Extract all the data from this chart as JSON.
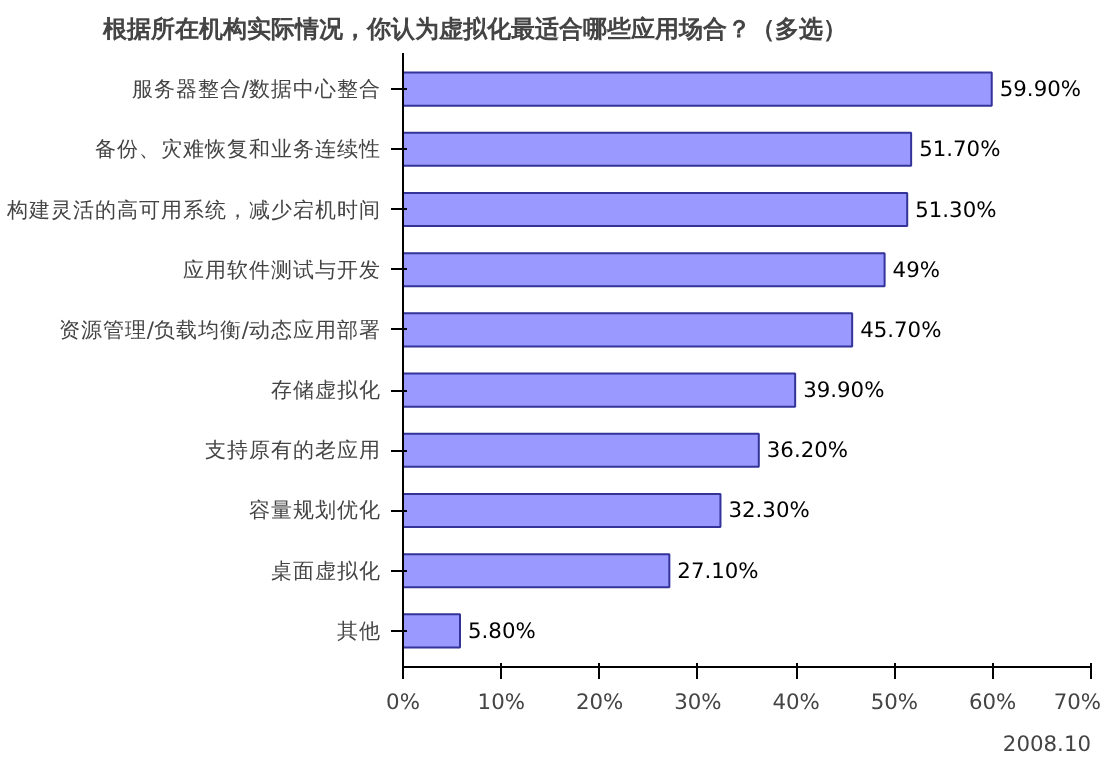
{
  "chart_data": {
    "type": "bar",
    "orientation": "horizontal",
    "title": "根据所在机构实际情况，你认为虚拟化最适合哪些应用场合？（多选）",
    "categories": [
      "服务器整合/数据中心整合",
      "备份、灾难恢复和业务连续性",
      "构建灵活的高可用系统，减少宕机时间",
      "应用软件测试与开发",
      "资源管理/负载均衡/动态应用部署",
      "存储虚拟化",
      "支持原有的老应用",
      "容量规划优化",
      "桌面虚拟化",
      "其他"
    ],
    "values": [
      59.9,
      51.7,
      51.3,
      49,
      45.7,
      39.9,
      36.2,
      32.3,
      27.1,
      5.8
    ],
    "value_labels": [
      "59.90%",
      "51.70%",
      "51.30%",
      "49%",
      "45.70%",
      "39.90%",
      "36.20%",
      "32.30%",
      "27.10%",
      "5.80%"
    ],
    "color": "#9999ff",
    "xlim": [
      0,
      70
    ],
    "xticks": [
      {
        "value": 0,
        "label": "0%"
      },
      {
        "value": 10,
        "label": "10%"
      },
      {
        "value": 20,
        "label": "20%"
      },
      {
        "value": 30,
        "label": "30%"
      },
      {
        "value": 40,
        "label": "40%"
      },
      {
        "value": 50,
        "label": "50%"
      },
      {
        "value": 60,
        "label": "60%"
      },
      {
        "value": 70,
        "label": "70%"
      }
    ],
    "annotations": [
      "2008.10"
    ]
  }
}
